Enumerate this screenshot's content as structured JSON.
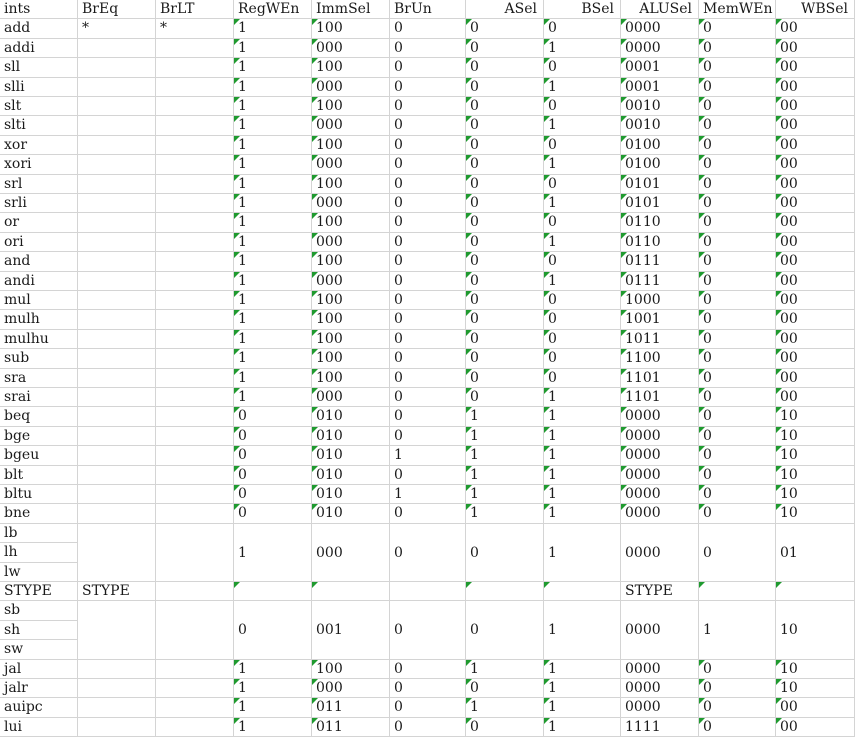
{
  "headers": [
    "ints",
    "BrEq",
    "BrLT",
    "RegWEn",
    "ImmSel",
    "BrUn",
    "ASel",
    "BSel",
    "ALUSel",
    "MemWEn",
    "WBSel"
  ],
  "rows": [
    [
      "add",
      "*",
      "*",
      "1",
      "100",
      "0",
      "0",
      "0",
      "0000",
      "0",
      "00"
    ],
    [
      "addi",
      "",
      "",
      "1",
      "000",
      "0",
      "0",
      "1",
      "0000",
      "0",
      "00"
    ],
    [
      "sll",
      "",
      "",
      "1",
      "100",
      "0",
      "0",
      "0",
      "0001",
      "0",
      "00"
    ],
    [
      "slli",
      "",
      "",
      "1",
      "000",
      "0",
      "0",
      "1",
      "0001",
      "0",
      "00"
    ],
    [
      "slt",
      "",
      "",
      "1",
      "100",
      "0",
      "0",
      "0",
      "0010",
      "0",
      "00"
    ],
    [
      "slti",
      "",
      "",
      "1",
      "000",
      "0",
      "0",
      "1",
      "0010",
      "0",
      "00"
    ],
    [
      "xor",
      "",
      "",
      "1",
      "100",
      "0",
      "0",
      "0",
      "0100",
      "0",
      "00"
    ],
    [
      "xori",
      "",
      "",
      "1",
      "000",
      "0",
      "0",
      "1",
      "0100",
      "0",
      "00"
    ],
    [
      "srl",
      "",
      "",
      "1",
      "100",
      "0",
      "0",
      "0",
      "0101",
      "0",
      "00"
    ],
    [
      "srli",
      "",
      "",
      "1",
      "000",
      "0",
      "0",
      "1",
      "0101",
      "0",
      "00"
    ],
    [
      "or",
      "",
      "",
      "1",
      "100",
      "0",
      "0",
      "0",
      "0110",
      "0",
      "00"
    ],
    [
      "ori",
      "",
      "",
      "1",
      "000",
      "0",
      "0",
      "1",
      "0110",
      "0",
      "00"
    ],
    [
      "and",
      "",
      "",
      "1",
      "100",
      "0",
      "0",
      "0",
      "0111",
      "0",
      "00"
    ],
    [
      "andi",
      "",
      "",
      "1",
      "000",
      "0",
      "0",
      "1",
      "0111",
      "0",
      "00"
    ],
    [
      "mul",
      "",
      "",
      "1",
      "100",
      "0",
      "0",
      "0",
      "1000",
      "0",
      "00"
    ],
    [
      "mulh",
      "",
      "",
      "1",
      "100",
      "0",
      "0",
      "0",
      "1001",
      "0",
      "00"
    ],
    [
      "mulhu",
      "",
      "",
      "1",
      "100",
      "0",
      "0",
      "0",
      "1011",
      "0",
      "00"
    ],
    [
      "sub",
      "",
      "",
      "1",
      "100",
      "0",
      "0",
      "0",
      "1100",
      "0",
      "00"
    ],
    [
      "sra",
      "",
      "",
      "1",
      "100",
      "0",
      "0",
      "0",
      "1101",
      "0",
      "00"
    ],
    [
      "srai",
      "",
      "",
      "1",
      "000",
      "0",
      "0",
      "1",
      "1101",
      "0",
      "00"
    ],
    [
      "beq",
      "",
      "",
      "0",
      "010",
      "0",
      "1",
      "1",
      "0000",
      "0",
      "10"
    ],
    [
      "bge",
      "",
      "",
      "0",
      "010",
      "0",
      "1",
      "1",
      "0000",
      "0",
      "10"
    ],
    [
      "bgeu",
      "",
      "",
      "0",
      "010",
      "1",
      "1",
      "1",
      "0000",
      "0",
      "10"
    ],
    [
      "blt",
      "",
      "",
      "0",
      "010",
      "0",
      "1",
      "1",
      "0000",
      "0",
      "10"
    ],
    [
      "bltu",
      "",
      "",
      "0",
      "010",
      "1",
      "1",
      "1",
      "0000",
      "0",
      "10"
    ],
    [
      "bne",
      "",
      "",
      "0",
      "010",
      "0",
      "1",
      "1",
      "0000",
      "0",
      "10"
    ]
  ],
  "load_group": {
    "names": [
      "lb",
      "lh",
      "lw"
    ],
    "values": [
      "1",
      "000",
      "0",
      "0",
      "1",
      "0000",
      "0",
      "01"
    ]
  },
  "stype_row": {
    "ints": "STYPE",
    "brEq": "STYPE",
    "aluSel": "STYPE"
  },
  "store_group": {
    "names": [
      "sb",
      "sh",
      "sw"
    ],
    "values": [
      "0",
      "001",
      "0",
      "0",
      "1",
      "0000",
      "1",
      "10"
    ]
  },
  "tail_rows": [
    [
      "jal",
      "",
      "",
      "1",
      "100",
      "0",
      "1",
      "1",
      "0000",
      "0",
      "10"
    ],
    [
      "jalr",
      "",
      "",
      "1",
      "000",
      "0",
      "0",
      "1",
      "0000",
      "0",
      "10"
    ],
    [
      "auipc",
      "",
      "",
      "1",
      "011",
      "0",
      "1",
      "1",
      "0000",
      "0",
      "00"
    ],
    [
      "lui",
      "",
      "",
      "1",
      "011",
      "0",
      "0",
      "1",
      "1111",
      "0",
      "00"
    ]
  ],
  "colors": {
    "grid": "#d4d4d4",
    "text_marker": "#1f9a2f"
  }
}
